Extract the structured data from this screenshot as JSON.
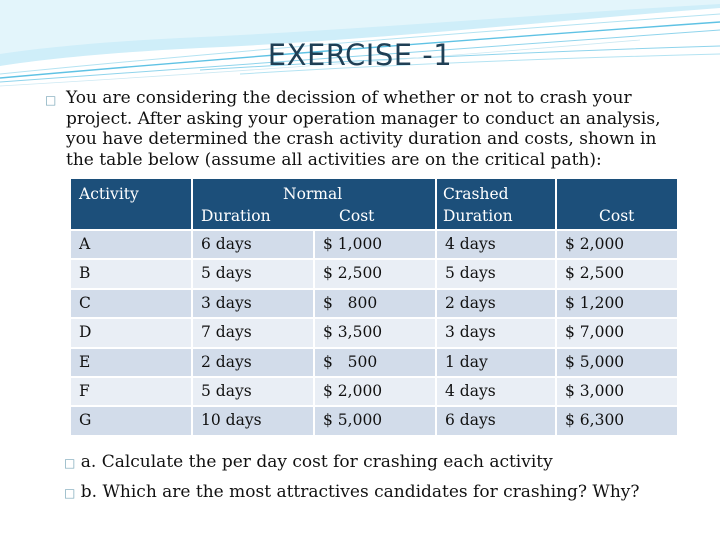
{
  "slide": {
    "title": "EXERCISE -1",
    "intro": "You are considering the decission of whether or not to crash your project. After asking your operation manager to conduct an analysis, you have determined the crash activity duration and costs, shown in the table below (assume all activities are on the critical path):"
  },
  "table": {
    "headers": {
      "activity": "Activity",
      "normal": "Normal",
      "normal_duration": "Duration",
      "normal_cost": "Cost",
      "crashed": "Crashed",
      "crashed_duration": "Duration",
      "crashed_cost": "Cost"
    },
    "rows": [
      {
        "activity": "A",
        "normal_duration": "6 days",
        "normal_cost": "$ 1,000",
        "crashed_duration": "4 days",
        "crashed_cost": "$ 2,000"
      },
      {
        "activity": "B",
        "normal_duration": "5 days",
        "normal_cost": "$ 2,500",
        "crashed_duration": "5 days",
        "crashed_cost": "$ 2,500"
      },
      {
        "activity": "C",
        "normal_duration": "3 days",
        "normal_cost": "$   800",
        "crashed_duration": "2 days",
        "crashed_cost": "$ 1,200"
      },
      {
        "activity": "D",
        "normal_duration": "7 days",
        "normal_cost": "$ 3,500",
        "crashed_duration": "3 days",
        "crashed_cost": "$ 7,000"
      },
      {
        "activity": "E",
        "normal_duration": "2 days",
        "normal_cost": "$   500",
        "crashed_duration": "1 day",
        "crashed_cost": "$ 5,000"
      },
      {
        "activity": "F",
        "normal_duration": "5 days",
        "normal_cost": "$ 2,000",
        "crashed_duration": "4 days",
        "crashed_cost": "$ 3,000"
      },
      {
        "activity": "G",
        "normal_duration": "10 days",
        "normal_cost": "$ 5,000",
        "crashed_duration": "6 days",
        "crashed_cost": "$ 6,300"
      }
    ]
  },
  "questions": {
    "a": "a. Calculate the per day cost for crashing each activity",
    "b": "b. Which are the most attractives candidates for crashing? Why?"
  },
  "colors": {
    "header_bg": "#1c4f7a",
    "row_odd": "#d2dcea",
    "row_even": "#e9eef5",
    "title": "#1f3f55",
    "wave_accent": "#5fc2e4"
  },
  "icons": {
    "bullet": "square-bullet-icon",
    "decoration": "wave-lines-icon"
  }
}
